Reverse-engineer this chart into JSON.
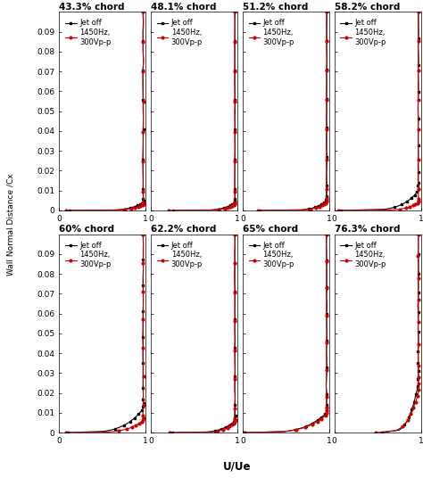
{
  "subplots": [
    {
      "title": "43.3% chord",
      "row": 0,
      "col": 0,
      "xlim": [
        0,
        1
      ],
      "xticks": [
        0,
        1
      ]
    },
    {
      "title": "48.1% chord",
      "row": 0,
      "col": 1,
      "xlim": [
        0,
        1
      ],
      "xticks": [
        0,
        1
      ]
    },
    {
      "title": "51.2% chord",
      "row": 0,
      "col": 2,
      "xlim": [
        0,
        1
      ],
      "xticks": [
        0,
        1
      ]
    },
    {
      "title": "58.2% chord",
      "row": 0,
      "col": 3,
      "xlim": [
        0,
        1
      ],
      "xticks": [
        0,
        1
      ]
    },
    {
      "title": "60% chord",
      "row": 1,
      "col": 0,
      "xlim": [
        0,
        1
      ],
      "xticks": [
        0,
        1
      ]
    },
    {
      "title": "62.2% chord",
      "row": 1,
      "col": 1,
      "xlim": [
        0,
        1
      ],
      "xticks": [
        0,
        1
      ]
    },
    {
      "title": "65% chord",
      "row": 1,
      "col": 2,
      "xlim": [
        0,
        1
      ],
      "xticks": [
        0,
        1
      ]
    },
    {
      "title": "76.3% chord",
      "row": 1,
      "col": 3,
      "xlim": [
        0,
        1
      ],
      "xticks": [
        0,
        1
      ]
    }
  ],
  "ylim": [
    0,
    0.1
  ],
  "yticks": [
    0,
    0.01,
    0.02,
    0.03,
    0.04,
    0.05,
    0.06,
    0.07,
    0.08,
    0.09
  ],
  "ylabel": "Wall Normal Distance /Cx",
  "xlabel": "U/Ue",
  "black_label": "Jet off",
  "red_label": "1450Hz,\n300Vp-p",
  "black_color": "#000000",
  "red_color": "#cc0000",
  "title_fontsize": 7.5,
  "axis_fontsize": 6.5,
  "legend_fontsize": 6.0,
  "profiles": {
    "0_0": {
      "bk_wall": 0.12,
      "bk_delta": 0.004,
      "bk_n": 6,
      "rd_wall": 0.08,
      "rd_delta": 0.003,
      "rd_n": 7
    },
    "0_1": {
      "bk_wall": 0.25,
      "bk_delta": 0.004,
      "bk_n": 6,
      "rd_wall": 0.2,
      "rd_delta": 0.003,
      "rd_n": 7
    },
    "0_2": {
      "bk_wall": 0.2,
      "bk_delta": 0.005,
      "bk_n": 6,
      "rd_wall": 0.18,
      "rd_delta": 0.004,
      "rd_n": 7
    },
    "0_3": {
      "bk_wall": 0.08,
      "bk_delta": 0.01,
      "bk_n": 5,
      "rd_wall": 0.05,
      "rd_delta": 0.004,
      "rd_n": 7
    },
    "1_0": {
      "bk_wall": 0.1,
      "bk_delta": 0.012,
      "bk_n": 4,
      "rd_wall": 0.08,
      "rd_delta": 0.006,
      "rd_n": 5
    },
    "1_1": {
      "bk_wall": 0.25,
      "bk_delta": 0.006,
      "bk_n": 5,
      "rd_wall": 0.22,
      "rd_delta": 0.005,
      "rd_n": 6
    },
    "1_2": {
      "bk_wall": 0.02,
      "bk_delta": 0.01,
      "bk_n": 4,
      "rd_wall": 0.02,
      "rd_delta": 0.009,
      "rd_n": 4
    },
    "1_3": {
      "bk_wall": 0.55,
      "bk_delta": 0.025,
      "bk_n": 4,
      "rd_wall": 0.48,
      "rd_delta": 0.02,
      "rd_n": 4
    }
  }
}
